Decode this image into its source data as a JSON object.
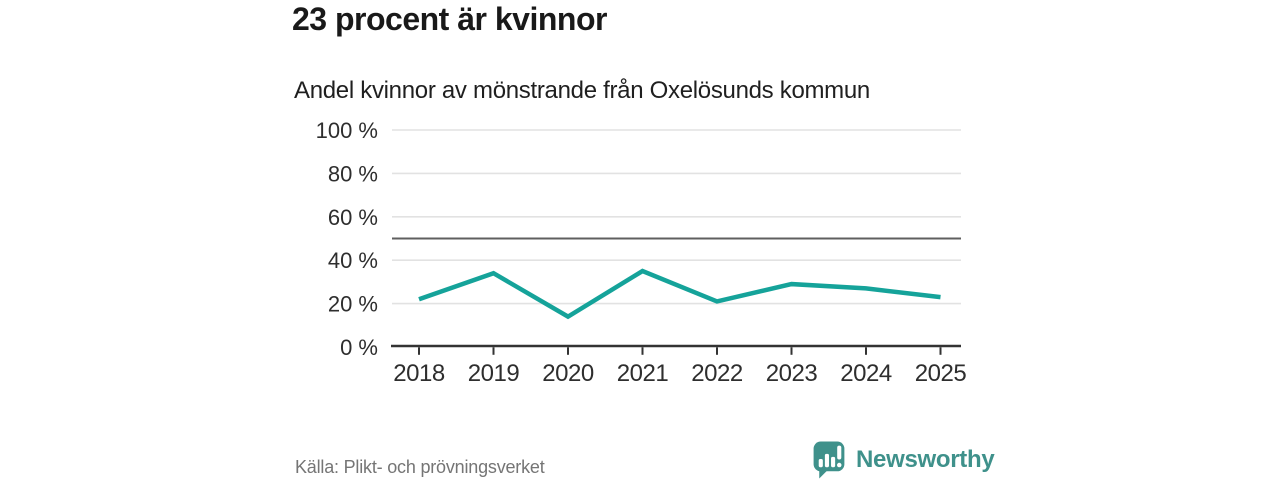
{
  "header": {
    "title": "23 procent är kvinnor",
    "subtitle": "Andel kvinnor av mönstrande från Oxelösunds kommun"
  },
  "chart_data": {
    "type": "line",
    "title": "23 procent är kvinnor",
    "subtitle": "Andel kvinnor av mönstrande från Oxelösunds kommun",
    "categories": [
      "2018",
      "2019",
      "2020",
      "2021",
      "2022",
      "2023",
      "2024",
      "2025"
    ],
    "series": [
      {
        "name": "Andel kvinnor av mönstrande",
        "values": [
          22,
          34,
          14,
          35,
          21,
          29,
          27,
          23
        ]
      }
    ],
    "unit": "%",
    "ylim": [
      0,
      100
    ],
    "yticks": [
      0,
      20,
      40,
      60,
      80,
      100
    ],
    "ytick_suffix": " %",
    "reference_line": 50,
    "grid": true,
    "legend": false,
    "line_color": "#15a39a",
    "reference_line_color": "#5f5f5f",
    "grid_color": "#e2e2e2",
    "axis_color": "#333333",
    "label_color": "#2e2e2e"
  },
  "footer": {
    "source": "Källa: Plikt- och prövningsverket",
    "brand": "Newsworthy",
    "brand_color": "#3f918b"
  }
}
